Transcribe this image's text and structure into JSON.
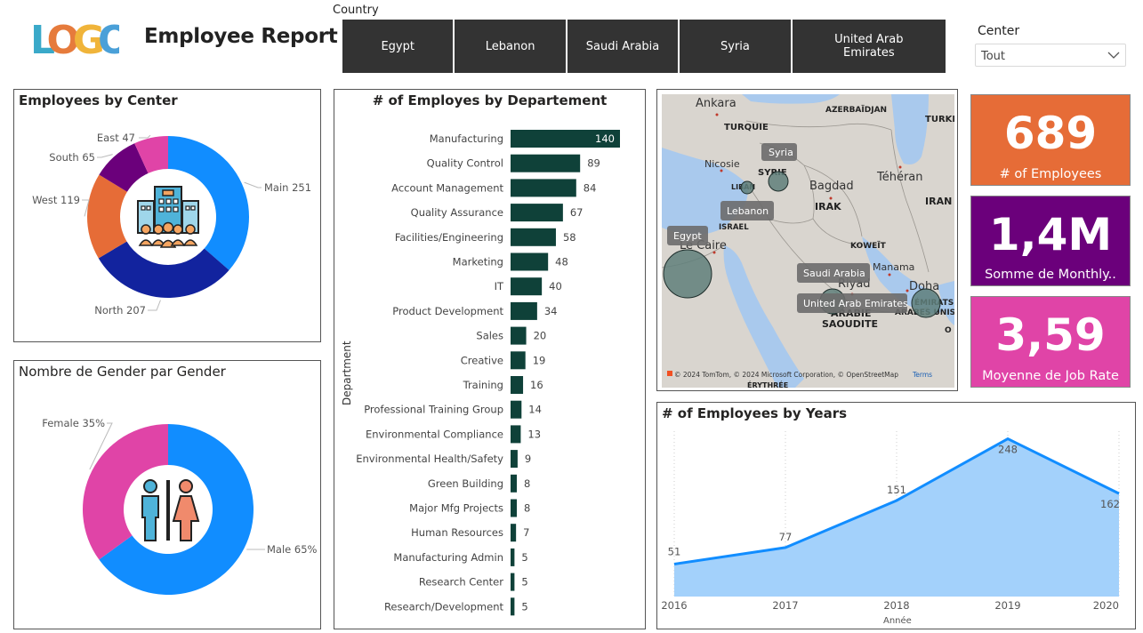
{
  "header": {
    "logo_text": "LOGO",
    "title": "Employee Report",
    "country_label": "Country",
    "countries": [
      "Egypt",
      "Lebanon",
      "Saudi Arabia",
      "Syria",
      "United Arab Emirates"
    ],
    "center_label": "Center",
    "center_value": "Tout"
  },
  "colors": {
    "bar": "#0f4139",
    "area_fill": "#a3d1fb",
    "area_line": "#118dff",
    "kpi_orange": "#e66c37",
    "kpi_purple": "#6b007b",
    "kpi_pink": "#e044a7"
  },
  "center_chart": {
    "title": "Employees by Center",
    "icon": "office-building-people-icon"
  },
  "gender_chart": {
    "title": "Nombre de Gender par Gender",
    "icon": "male-female-icon"
  },
  "dept_chart": {
    "title": "# of Employes by Departement",
    "axis_label": "Department"
  },
  "years_chart": {
    "title": "# of Employees by Years",
    "xlabel": "Année"
  },
  "map": {
    "cities": [
      "Ankara",
      "Nicosie",
      "Bagdad",
      "Téhéran",
      "Le Caire",
      "Riyad",
      "Manama",
      "Doha"
    ],
    "countries": [
      "TURQUIE",
      "AZERBAÏDJAN",
      "TURKI",
      "SYRIE",
      "LIBAN",
      "IRAK",
      "IRAN",
      "ISRAEL",
      "KOWEÏT",
      "ARABIE",
      "SAOUDITE",
      "ÉMIRATS",
      "ARABES UNIS",
      "O",
      "ÉRYTHRÉE"
    ],
    "bubble_tags": [
      "Syria",
      "Lebanon",
      "Egypt",
      "Saudi Arabia",
      "United Arab Emirates"
    ],
    "attribution": "© 2024 TomTom, © 2024 Microsoft Corporation, © OpenStreetMap",
    "terms": "Terms"
  },
  "kpis": [
    {
      "value": "689",
      "label": "# of Employees"
    },
    {
      "value": "1,4M",
      "label": "Somme de Monthly.."
    },
    {
      "value": "3,59",
      "label": "Moyenne de Job Rate"
    }
  ],
  "chart_data": [
    {
      "type": "pie",
      "title": "Employees by Center",
      "labels": [
        "Main",
        "North",
        "West",
        "South",
        "East"
      ],
      "values": [
        251,
        207,
        119,
        65,
        47
      ],
      "colors": [
        "#118dff",
        "#12239e",
        "#e66c37",
        "#6b007b",
        "#e044a7"
      ],
      "data_labels": [
        "Main 251",
        "North 207",
        "West 119",
        "South 65",
        "East 47"
      ]
    },
    {
      "type": "pie",
      "title": "Nombre de Gender par Gender",
      "labels": [
        "Male",
        "Female"
      ],
      "values": [
        65,
        35
      ],
      "colors": [
        "#118dff",
        "#e044a7"
      ],
      "data_labels": [
        "Male 65%",
        "Female 35%"
      ]
    },
    {
      "type": "bar",
      "title": "# of Employes by Departement",
      "ylabel": "Department",
      "categories": [
        "Manufacturing",
        "Quality Control",
        "Account Management",
        "Quality Assurance",
        "Facilities/Engineering",
        "Marketing",
        "IT",
        "Product Development",
        "Sales",
        "Creative",
        "Training",
        "Professional Training Group",
        "Environmental Compliance",
        "Environmental Health/Safety",
        "Green Building",
        "Major Mfg Projects",
        "Human Resources",
        "Manufacturing Admin",
        "Research Center",
        "Research/Development"
      ],
      "values": [
        140,
        89,
        84,
        67,
        58,
        48,
        40,
        34,
        20,
        19,
        16,
        14,
        13,
        9,
        8,
        8,
        7,
        5,
        5,
        5
      ]
    },
    {
      "type": "area",
      "title": "# of Employees by Years",
      "xlabel": "Année",
      "x": [
        "2016",
        "2017",
        "2018",
        "2019",
        "2020"
      ],
      "values": [
        51,
        77,
        151,
        248,
        162
      ]
    }
  ]
}
